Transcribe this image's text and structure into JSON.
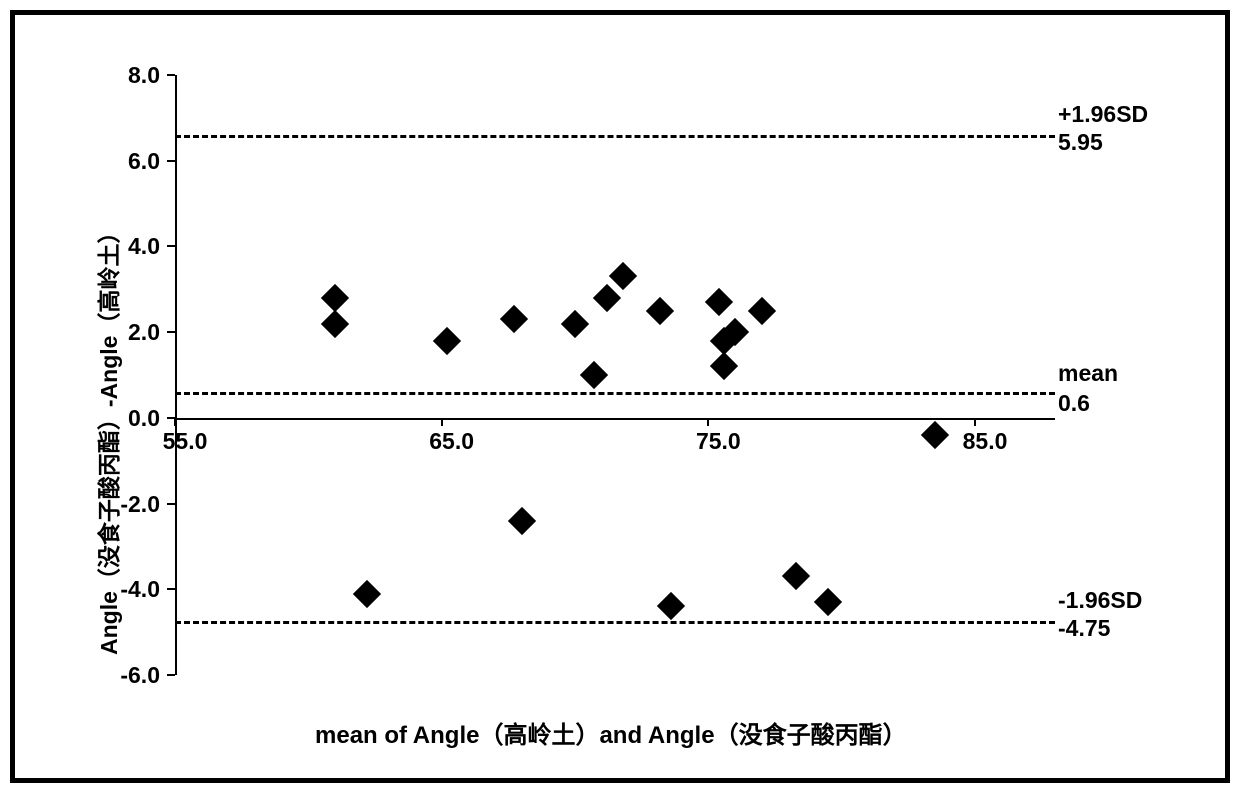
{
  "chart": {
    "type": "scatter",
    "x_axis_title": "mean of Angle（高岭土）and Angle（没食子酸丙酯）",
    "y_axis_title": "Angle（没食子酸丙酯）-Angle（高岭土）",
    "xlim": [
      55.0,
      88.0
    ],
    "ylim": [
      -6.0,
      8.0
    ],
    "x_ticks": [
      55.0,
      65.0,
      75.0,
      85.0
    ],
    "y_ticks": [
      -6.0,
      -4.0,
      -2.0,
      0.0,
      2.0,
      4.0,
      6.0,
      8.0
    ],
    "x_tick_labels": [
      "55.0",
      "65.0",
      "75.0",
      "85.0"
    ],
    "y_tick_labels": [
      "-6.0",
      "-4.0",
      "-2.0",
      "0.0",
      "2.0",
      "4.0",
      "6.0",
      "8.0"
    ],
    "y_axis_x_position": 55.0,
    "x_axis_y_position": 0.0,
    "marker_style": "diamond",
    "marker_color": "#000000",
    "marker_size": 20,
    "axis_color": "#000000",
    "background_color": "#ffffff",
    "lines": [
      {
        "id": "upper",
        "y": 6.6,
        "x_start": 55.0,
        "x_end": 88.0,
        "style": "dashed",
        "color": "#000000"
      },
      {
        "id": "mean",
        "y": 0.6,
        "x_start": 55.0,
        "x_end": 88.0,
        "style": "dashed",
        "color": "#000000"
      },
      {
        "id": "lower",
        "y": -4.75,
        "x_start": 55.0,
        "x_end": 88.0,
        "style": "dashed",
        "color": "#000000"
      }
    ],
    "annotations": {
      "upper_label": "+1.96SD",
      "upper_value": "5.95",
      "mean_label": "mean",
      "mean_value": "0.6",
      "lower_label": "-1.96SD",
      "lower_value": "-4.75"
    },
    "points": [
      {
        "x": 61.0,
        "y": 2.8
      },
      {
        "x": 61.0,
        "y": 2.2
      },
      {
        "x": 62.2,
        "y": -4.1
      },
      {
        "x": 65.2,
        "y": 1.8
      },
      {
        "x": 67.7,
        "y": 2.3
      },
      {
        "x": 68.0,
        "y": -2.4
      },
      {
        "x": 70.0,
        "y": 2.2
      },
      {
        "x": 70.7,
        "y": 1.0
      },
      {
        "x": 71.2,
        "y": 2.8
      },
      {
        "x": 71.8,
        "y": 3.3
      },
      {
        "x": 73.2,
        "y": 2.5
      },
      {
        "x": 73.6,
        "y": -4.4
      },
      {
        "x": 75.4,
        "y": 2.7
      },
      {
        "x": 75.6,
        "y": 1.2
      },
      {
        "x": 75.6,
        "y": 1.8
      },
      {
        "x": 76.0,
        "y": 2.0
      },
      {
        "x": 77.0,
        "y": 2.5
      },
      {
        "x": 78.3,
        "y": -3.7
      },
      {
        "x": 79.5,
        "y": -4.3
      },
      {
        "x": 83.5,
        "y": -0.4
      }
    ],
    "label_fontsize": 23,
    "title_fontsize": 24,
    "font_weight": "bold"
  }
}
